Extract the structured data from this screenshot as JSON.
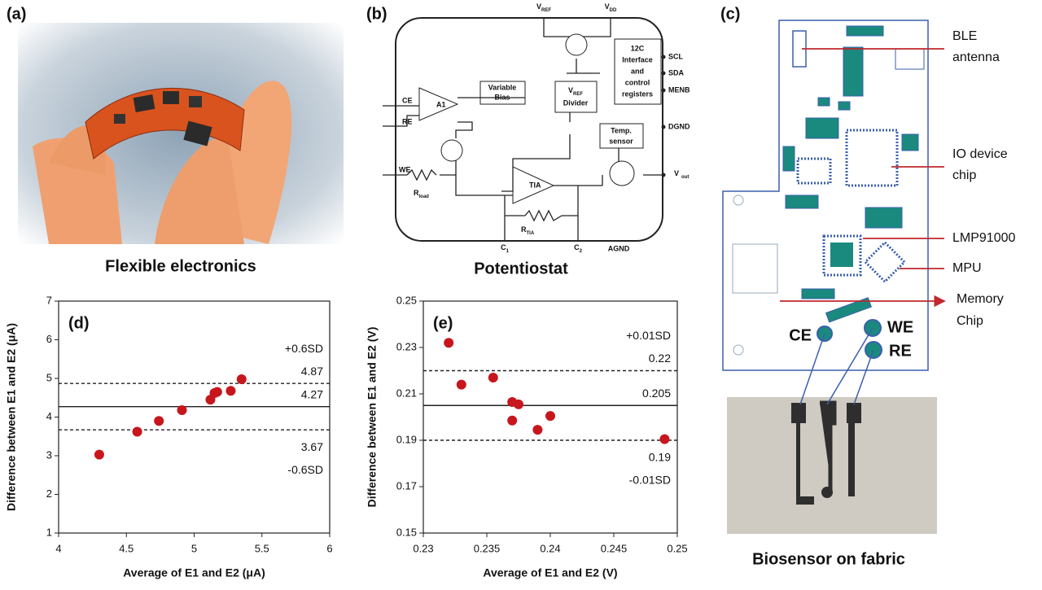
{
  "panels": {
    "a": {
      "label": "(a)",
      "caption": "Flexible electronics"
    },
    "b": {
      "label": "(b)",
      "caption": "Potentiostat",
      "vref": [
        "V",
        "REF"
      ],
      "vdd": [
        "V",
        "DD"
      ],
      "pins": [
        "SCL",
        "SDA",
        "MENB",
        "DGND"
      ],
      "inputs": [
        "CE",
        "RE",
        "WE"
      ],
      "amp": "A1",
      "tia": "TIA",
      "bias": [
        "Variable",
        "Bias"
      ],
      "divider": [
        "V",
        "REF",
        "Divider"
      ],
      "interface": [
        "12C",
        "Interface",
        "and",
        "control",
        "registers"
      ],
      "temp": [
        "Temp.",
        "sensor"
      ],
      "rload": [
        "R",
        "load"
      ],
      "rtia": [
        "R",
        "TIA"
      ],
      "c1": [
        "C",
        "1"
      ],
      "c2": [
        "C",
        "2"
      ],
      "agnd": "AGND",
      "vout": [
        "V",
        "out"
      ]
    },
    "c": {
      "label": "(c)",
      "caption": "Biosensor on fabric",
      "callouts": [
        [
          "BLE",
          "antenna"
        ],
        [
          "IO device",
          "chip"
        ],
        [
          "LMP91000"
        ],
        [
          "MPU"
        ],
        [
          "Memory",
          "Chip"
        ]
      ],
      "electrodes": [
        "CE",
        "WE",
        "RE"
      ]
    }
  },
  "chart_data": [
    {
      "type": "scatter",
      "panel_label": "(d)",
      "x_label": "Average of E1 and E2 (μA)",
      "y_label": "Difference between E1 and E2 (μA)",
      "x": [
        4.3,
        4.58,
        4.74,
        4.91,
        5.12,
        5.15,
        5.17,
        5.27,
        5.35
      ],
      "values": [
        3.03,
        3.62,
        3.9,
        4.18,
        4.45,
        4.62,
        4.65,
        4.68,
        4.98
      ],
      "color": "#c8161d",
      "xlim": [
        4,
        6
      ],
      "xticks": [
        4,
        4.5,
        5,
        5.5,
        6
      ],
      "ylim": [
        1,
        7
      ],
      "yticks": [
        1,
        2,
        3,
        4,
        5,
        6,
        7
      ],
      "lines": [
        {
          "value": 4.87,
          "style": "dashed"
        },
        {
          "value": 4.27,
          "style": "solid"
        },
        {
          "value": 3.67,
          "style": "dashed"
        }
      ],
      "annotations": [
        "+0.6SD",
        "-0.6SD"
      ]
    },
    {
      "type": "scatter",
      "panel_label": "(e)",
      "x_label": "Average of E1 and E2 (V)",
      "y_label": "Difference between E1 and E2 (V)",
      "x": [
        0.232,
        0.233,
        0.2355,
        0.237,
        0.2375,
        0.237,
        0.239,
        0.24,
        0.249
      ],
      "values": [
        0.232,
        0.214,
        0.217,
        0.2065,
        0.2055,
        0.1985,
        0.1945,
        0.2005,
        0.1905
      ],
      "color": "#c8161d",
      "xlim": [
        0.23,
        0.25
      ],
      "xticks": [
        0.23,
        0.235,
        0.24,
        0.245,
        0.25
      ],
      "ylim": [
        0.15,
        0.25
      ],
      "yticks": [
        0.15,
        0.17,
        0.19,
        0.21,
        0.23,
        0.25
      ],
      "lines": [
        {
          "value": 0.22,
          "style": "dashed"
        },
        {
          "value": 0.205,
          "style": "solid"
        },
        {
          "value": 0.19,
          "style": "dashed"
        }
      ],
      "annotations": [
        "+0.01SD",
        "-0.01SD"
      ]
    }
  ]
}
